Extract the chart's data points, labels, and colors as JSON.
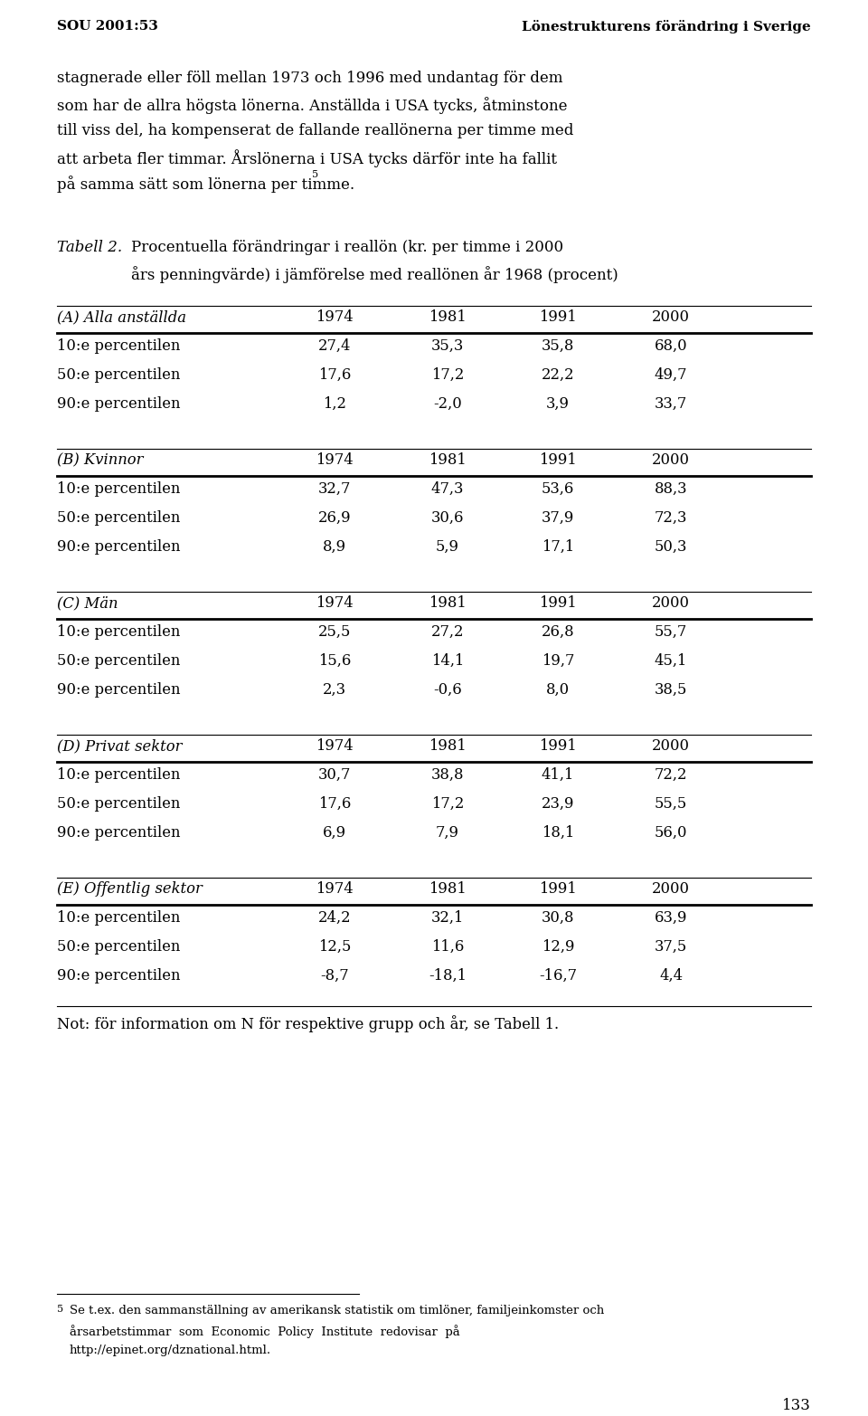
{
  "header_left": "SOU 2001:53",
  "header_right": "Lönestrukturens förändring i Sverige",
  "sections": [
    {
      "header_italic": "(A) Alla anställda",
      "rows": [
        {
          "label": "10:e percentilen",
          "values": [
            "27,4",
            "35,3",
            "35,8",
            "68,0"
          ]
        },
        {
          "label": "50:e percentilen",
          "values": [
            "17,6",
            "17,2",
            "22,2",
            "49,7"
          ]
        },
        {
          "label": "90:e percentilen",
          "values": [
            "1,2",
            "-2,0",
            "3,9",
            "33,7"
          ]
        }
      ]
    },
    {
      "header_italic": "(B) Kvinnor",
      "rows": [
        {
          "label": "10:e percentilen",
          "values": [
            "32,7",
            "47,3",
            "53,6",
            "88,3"
          ]
        },
        {
          "label": "50:e percentilen",
          "values": [
            "26,9",
            "30,6",
            "37,9",
            "72,3"
          ]
        },
        {
          "label": "90:e percentilen",
          "values": [
            "8,9",
            "5,9",
            "17,1",
            "50,3"
          ]
        }
      ]
    },
    {
      "header_italic": "(C) Män",
      "rows": [
        {
          "label": "10:e percentilen",
          "values": [
            "25,5",
            "27,2",
            "26,8",
            "55,7"
          ]
        },
        {
          "label": "50:e percentilen",
          "values": [
            "15,6",
            "14,1",
            "19,7",
            "45,1"
          ]
        },
        {
          "label": "90:e percentilen",
          "values": [
            "2,3",
            "-0,6",
            "8,0",
            "38,5"
          ]
        }
      ]
    },
    {
      "header_italic": "(D) Privat sektor",
      "rows": [
        {
          "label": "10:e percentilen",
          "values": [
            "30,7",
            "38,8",
            "41,1",
            "72,2"
          ]
        },
        {
          "label": "50:e percentilen",
          "values": [
            "17,6",
            "17,2",
            "23,9",
            "55,5"
          ]
        },
        {
          "label": "90:e percentilen",
          "values": [
            "6,9",
            "7,9",
            "18,1",
            "56,0"
          ]
        }
      ]
    },
    {
      "header_italic": "(E) Offentlig sektor",
      "rows": [
        {
          "label": "10:e percentilen",
          "values": [
            "24,2",
            "32,1",
            "30,8",
            "63,9"
          ]
        },
        {
          "label": "50:e percentilen",
          "values": [
            "12,5",
            "11,6",
            "12,9",
            "37,5"
          ]
        },
        {
          "label": "90:e percentilen",
          "values": [
            "-8,7",
            "-18,1",
            "-16,7",
            "4,4"
          ]
        }
      ]
    }
  ],
  "note": "Not: för information om N för respektive grupp och år, se Tabell 1.",
  "page_number": "133",
  "bg_color": "#ffffff"
}
